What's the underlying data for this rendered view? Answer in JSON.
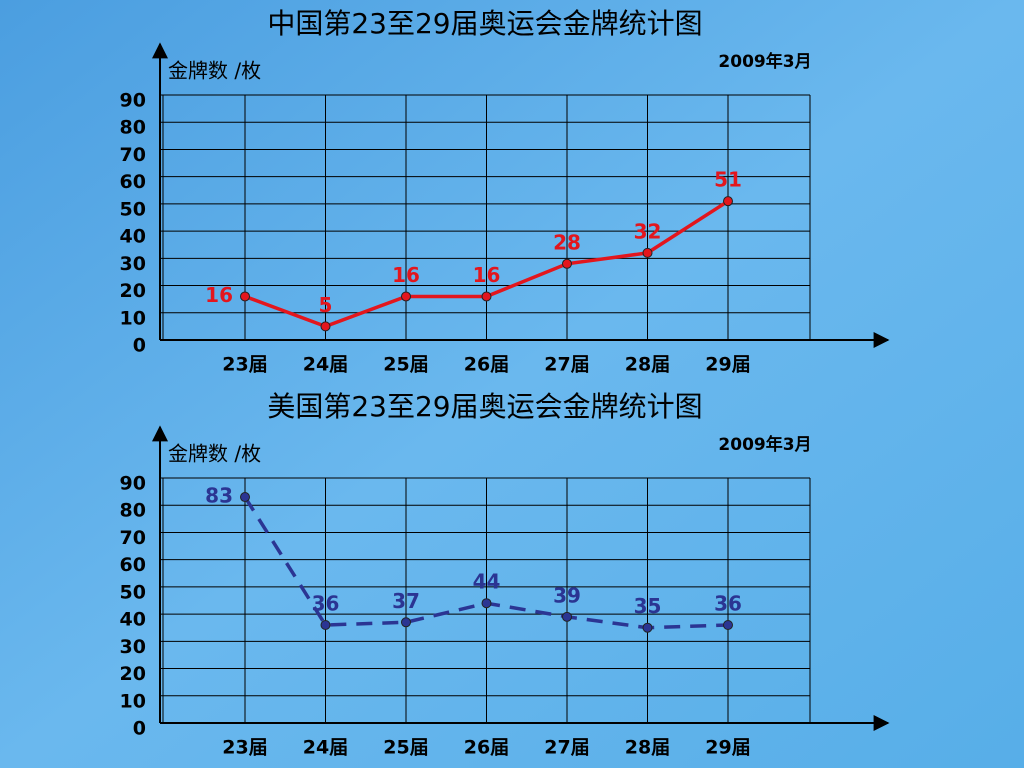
{
  "chart_data": [
    {
      "type": "line",
      "title": "中国第23至29届奥运会金牌统计图",
      "y_label": "金牌数 /枚",
      "note": "2009年3月",
      "categories": [
        "23届",
        "24届",
        "25届",
        "26届",
        "27届",
        "28届",
        "29届"
      ],
      "values": [
        16,
        5,
        16,
        16,
        28,
        32,
        51
      ],
      "color": "#e3161d",
      "line_style": "solid",
      "ylim": [
        0,
        90
      ],
      "yticks": [
        0,
        10,
        20,
        30,
        40,
        50,
        60,
        70,
        80,
        90
      ],
      "grid": true
    },
    {
      "type": "line",
      "title": "美国第23至29届奥运会金牌统计图",
      "y_label": "金牌数 /枚",
      "note": "2009年3月",
      "categories": [
        "23届",
        "24届",
        "25届",
        "26届",
        "27届",
        "28届",
        "29届"
      ],
      "values": [
        83,
        36,
        37,
        44,
        39,
        35,
        36
      ],
      "color": "#2b3593",
      "line_style": "dashed",
      "ylim": [
        0,
        90
      ],
      "yticks": [
        0,
        10,
        20,
        30,
        40,
        50,
        60,
        70,
        80,
        90
      ],
      "grid": true
    }
  ]
}
